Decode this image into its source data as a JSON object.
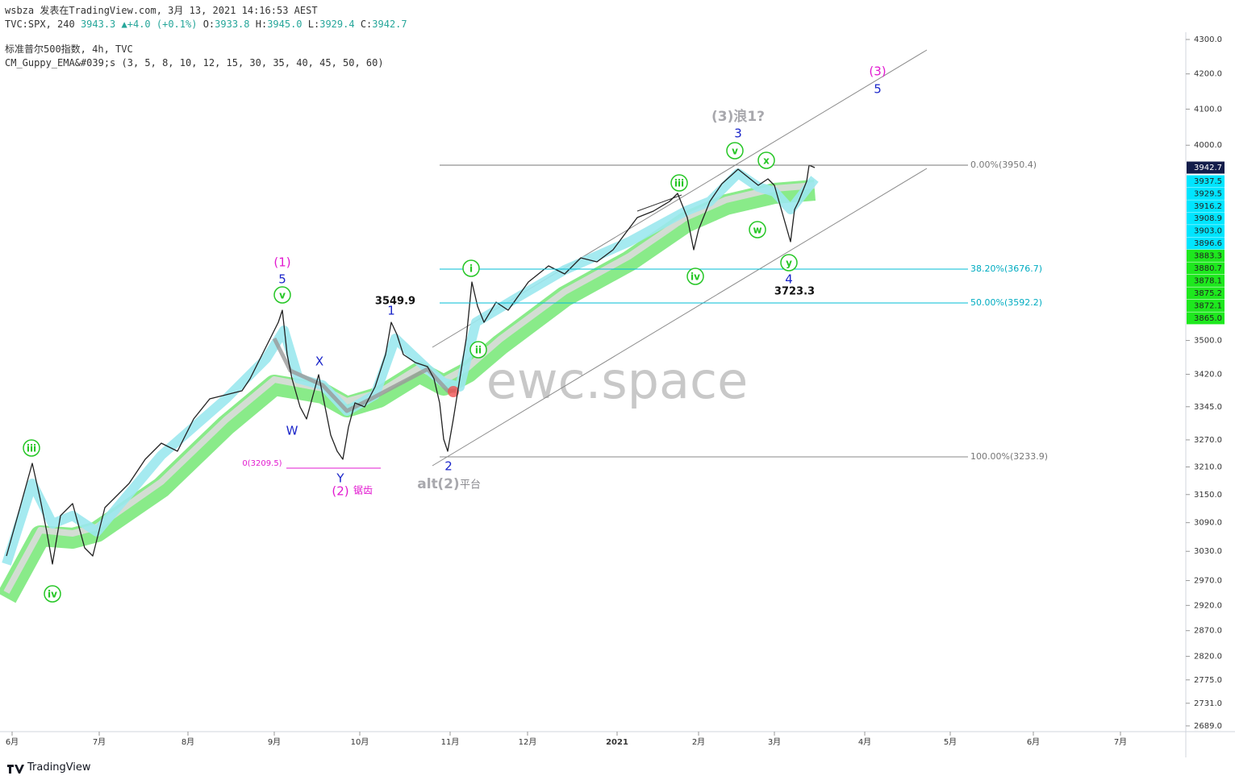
{
  "header": {
    "published": "wsbza 发表在TradingView.com, 3月 13, 2021 14:16:53 AEST",
    "symbol": "TVC:SPX, 240",
    "price": "3943.3",
    "change": "▲+4.0 (+0.1%)",
    "ohlc": [
      {
        "label": "O:",
        "value": "3933.8"
      },
      {
        "label": "H:",
        "value": "3945.0"
      },
      {
        "label": "L:",
        "value": "3929.4"
      },
      {
        "label": "C:",
        "value": "3942.7"
      }
    ],
    "name": "标准普尔500指数, 4h, TVC",
    "indicator": "CM_Guppy_EMA&#039;s (3, 5, 8, 10, 12, 15, 30, 35, 40, 45, 50, 60)"
  },
  "price_axis": {
    "ticks": [
      "4300.0",
      "4200.0",
      "4100.0",
      "4000.0",
      "3500.0",
      "3420.0",
      "3345.0",
      "3270.0",
      "3210.0",
      "3150.0",
      "3090.0",
      "3030.0",
      "2970.0",
      "2920.0",
      "2870.0",
      "2820.0",
      "2775.0",
      "2731.0",
      "2689.0"
    ],
    "last_price": "3942.7",
    "ema_fast": [
      "3937.5",
      "3929.5",
      "3916.2",
      "3908.9",
      "3903.0",
      "3896.6"
    ],
    "ema_slow": [
      "3883.3",
      "3880.7",
      "3878.1",
      "3875.2",
      "3872.1",
      "3865.0"
    ]
  },
  "time_axis": [
    "6月",
    "7月",
    "8月",
    "9月",
    "10月",
    "11月",
    "12月",
    "2021",
    "2月",
    "3月",
    "4月",
    "5月",
    "6月",
    "7月"
  ],
  "fib_levels": [
    "0.00%(3950.4)",
    "38.20%(3676.7)",
    "50.00%(3592.2)",
    "100.00%(3233.9)"
  ],
  "annotations": [
    "(3)",
    "5",
    "(3)浪1?",
    "3",
    "v",
    "x",
    "iii",
    "w",
    "y",
    "iv",
    "4",
    "3723.3",
    "i",
    "ii",
    "(1)",
    "5",
    "v",
    "3549.9",
    "1",
    "X",
    "W",
    "Y",
    "(2)",
    "锯齿",
    "0(3209.5)",
    "2",
    "alt",
    "(2)",
    "平台",
    "iii",
    "iv"
  ],
  "watermark": "ewc.space",
  "footer": "TradingView"
}
